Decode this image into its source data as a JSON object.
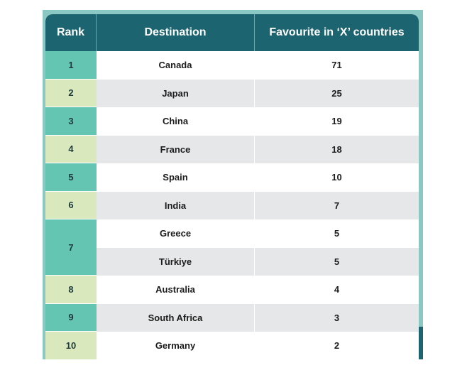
{
  "chart_data": {
    "type": "table",
    "columns": [
      "Rank",
      "Destination",
      "Favourite in ‘X’ countries"
    ],
    "rows": [
      {
        "rank": "1",
        "destination": "Canada",
        "value": "71"
      },
      {
        "rank": "2",
        "destination": "Japan",
        "value": "25"
      },
      {
        "rank": "3",
        "destination": "China",
        "value": "19"
      },
      {
        "rank": "4",
        "destination": "France",
        "value": "18"
      },
      {
        "rank": "5",
        "destination": "Spain",
        "value": "10"
      },
      {
        "rank": "6",
        "destination": "India",
        "value": "7"
      },
      {
        "rank": "7",
        "destination": "Greece",
        "value": "5"
      },
      {
        "rank": "7",
        "destination": "Türkiye",
        "value": "5"
      },
      {
        "rank": "8",
        "destination": "Australia",
        "value": "4"
      },
      {
        "rank": "9",
        "destination": "South Africa",
        "value": "3"
      },
      {
        "rank": "10",
        "destination": "Germany",
        "value": "2"
      }
    ]
  },
  "colors": {
    "header": "#1d6471",
    "rank_teal": "#64c5b3",
    "rank_pale": "#d9e9bd",
    "stripe": "#e6e7e8",
    "frame": "#8cc8c3"
  }
}
